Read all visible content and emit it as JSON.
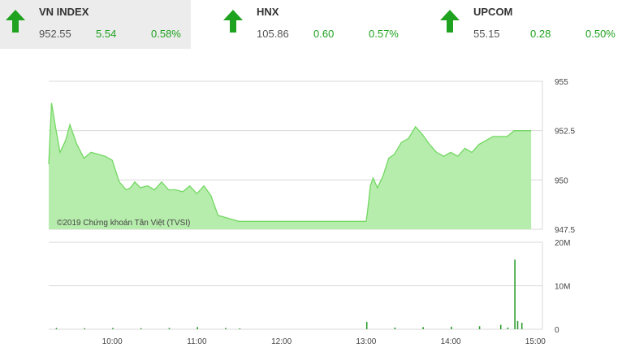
{
  "tickers": [
    {
      "name": "VN INDEX",
      "value": "952.55",
      "change": "5.54",
      "percent": "0.58%",
      "direction": "up",
      "active": true
    },
    {
      "name": "HNX",
      "value": "105.86",
      "change": "0.60",
      "percent": "0.57%",
      "direction": "up",
      "active": false
    },
    {
      "name": "UPCOM",
      "value": "55.15",
      "change": "0.28",
      "percent": "0.50%",
      "direction": "up",
      "active": false
    }
  ],
  "colors": {
    "up": "#1fa21f",
    "price_fill": "#b6ecac",
    "price_line": "#72d862",
    "volume": "#2e9c2e"
  },
  "chart_data": [
    {
      "type": "area",
      "y_ticks": [
        "955",
        "952.5",
        "950",
        "947.5"
      ],
      "ylim": [
        947.5,
        955
      ],
      "watermark": "©2019 Chứng khoán Tân Việt (TVSI)",
      "x": [
        "09:15",
        "09:17",
        "09:20",
        "09:23",
        "09:27",
        "09:30",
        "09:35",
        "09:40",
        "09:45",
        "09:50",
        "09:55",
        "10:00",
        "10:05",
        "10:10",
        "10:13",
        "10:16",
        "10:20",
        "10:25",
        "10:30",
        "10:35",
        "10:40",
        "10:45",
        "10:50",
        "10:55",
        "11:00",
        "11:05",
        "11:10",
        "11:15",
        "11:20",
        "11:25",
        "11:30",
        "13:00",
        "13:01",
        "13:03",
        "13:05",
        "13:08",
        "13:12",
        "13:16",
        "13:20",
        "13:25",
        "13:30",
        "13:35",
        "13:40",
        "13:45",
        "13:50",
        "13:55",
        "14:00",
        "14:05",
        "14:10",
        "14:15",
        "14:20",
        "14:30",
        "14:35",
        "14:40",
        "14:45",
        "14:50",
        "14:55",
        "14:57"
      ],
      "values": [
        950.8,
        953.9,
        952.6,
        951.4,
        952,
        952.8,
        951.8,
        951.1,
        951.4,
        951.3,
        951.2,
        951,
        949.9,
        949.5,
        949.6,
        949.9,
        949.6,
        949.7,
        949.5,
        949.9,
        949.5,
        949.5,
        949.4,
        949.7,
        949.3,
        949.7,
        949.2,
        948.2,
        948.1,
        948.0,
        947.9,
        947.9,
        948.4,
        949.7,
        950.1,
        949.6,
        950.2,
        951.1,
        951.3,
        951.9,
        952.1,
        952.7,
        952.3,
        951.8,
        951.4,
        951.2,
        951.4,
        951.2,
        951.6,
        951.4,
        951.8,
        952.2,
        952.2,
        952.2,
        952.5,
        952.5,
        952.5,
        952.5
      ]
    },
    {
      "type": "bar",
      "series": "volume",
      "y_ticks": [
        "20M",
        "10M",
        "0"
      ],
      "ylim": [
        0,
        20000000
      ],
      "x_ticks": [
        "10:00",
        "11:00",
        "12:00",
        "13:00",
        "14:00",
        "15:00"
      ],
      "values": [
        {
          "x": "09:20",
          "y": 300000
        },
        {
          "x": "09:40",
          "y": 250000
        },
        {
          "x": "10:00",
          "y": 300000
        },
        {
          "x": "10:20",
          "y": 250000
        },
        {
          "x": "10:40",
          "y": 300000
        },
        {
          "x": "11:00",
          "y": 500000
        },
        {
          "x": "11:20",
          "y": 300000
        },
        {
          "x": "11:30",
          "y": 200000
        },
        {
          "x": "13:00",
          "y": 1700000
        },
        {
          "x": "13:20",
          "y": 400000
        },
        {
          "x": "13:40",
          "y": 500000
        },
        {
          "x": "14:00",
          "y": 600000
        },
        {
          "x": "14:20",
          "y": 700000
        },
        {
          "x": "14:35",
          "y": 1000000
        },
        {
          "x": "14:40",
          "y": 400000
        },
        {
          "x": "14:45",
          "y": 16000000
        },
        {
          "x": "14:47",
          "y": 1900000
        },
        {
          "x": "14:50",
          "y": 1500000
        }
      ]
    }
  ]
}
